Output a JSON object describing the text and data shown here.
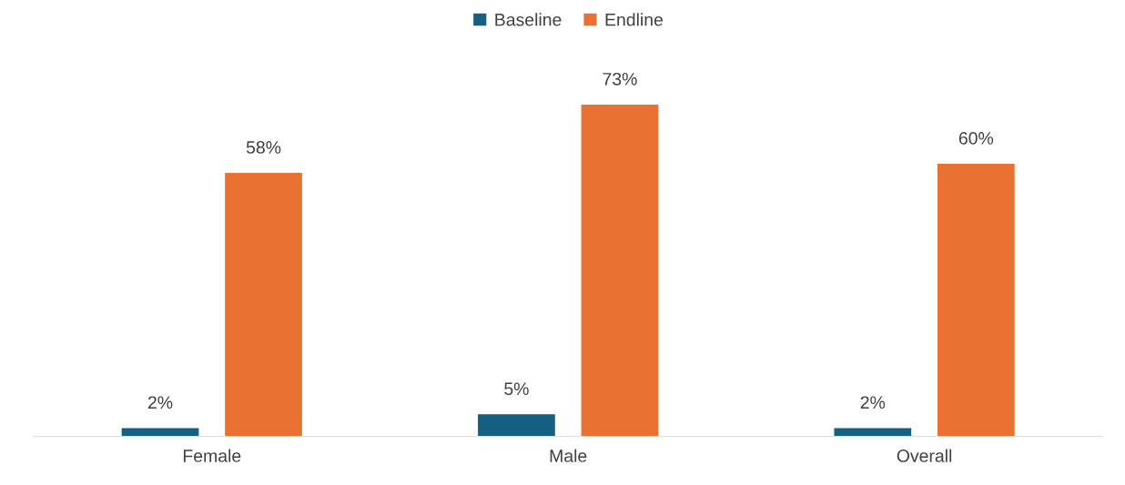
{
  "chart_data": {
    "type": "bar",
    "categories": [
      "Female",
      "Male",
      "Overall"
    ],
    "series": [
      {
        "name": "Baseline",
        "color": "#156082",
        "values": [
          2,
          5,
          2
        ],
        "value_labels": [
          "2%",
          "5%",
          "2%"
        ]
      },
      {
        "name": "Endline",
        "color": "#e97132",
        "values": [
          58,
          73,
          60
        ],
        "value_labels": [
          "58%",
          "73%",
          "60%"
        ]
      }
    ],
    "legend": "top"
  }
}
